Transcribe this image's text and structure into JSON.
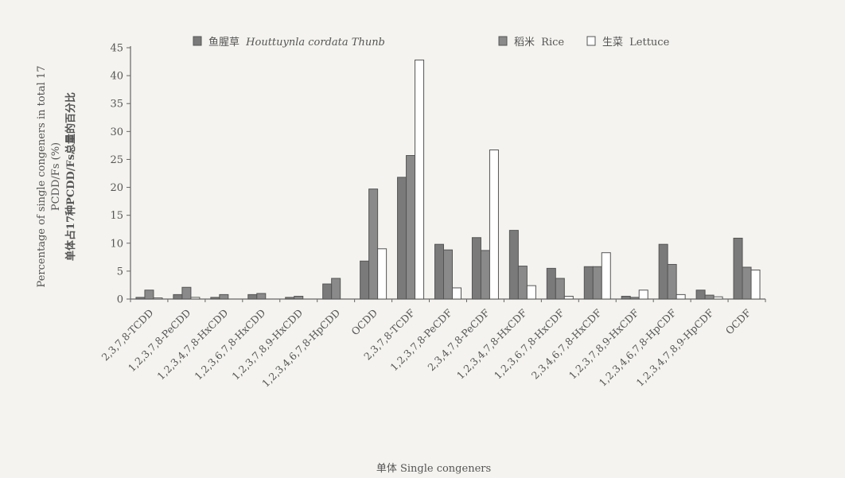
{
  "chart_data": {
    "type": "bar",
    "xlabel": "单体 Single congeners",
    "ylabel_en_line1": "Percentage of single congeners in total 17",
    "ylabel_en_line2": "PCDD/Fs (%)",
    "ylabel_cn": "单体占17种PCDD/Fs总量的百分比",
    "ylim": [
      0,
      45
    ],
    "yticks": [
      0,
      5,
      10,
      15,
      20,
      25,
      30,
      35,
      40,
      45
    ],
    "legend_position": "top",
    "categories": [
      "2,3,7,8-TCDD",
      "1,2,3,7,8-PeCDD",
      "1,2,3,4,7,8-HxCDD",
      "1,2,3,6,7,8-HxCDD",
      "1,2,3,7,8,9-HxCDD",
      "1,2,3,4,6,7,8-HpCDD",
      "OCDD",
      "2,3,7,8-TCDF",
      "1,2,3,7,8-PeCDF",
      "2,3,4,7,8-PeCDF",
      "1,2,3,4,7,8-HxCDF",
      "1,2,3,6,7,8-HxCDF",
      "2,3,4,6,7,8-HxCDF",
      "1,2,3,7,8,9-HxCDF",
      "1,2,3,4,6,7,8-HpCDF",
      "1,2,3,4,7,8,9-HpCDF",
      "OCDF"
    ],
    "series": [
      {
        "name_cn": "鱼腥草",
        "name_en": "Houttuynla cordata Thunb",
        "color": "#7a7a7a",
        "values": [
          0.3,
          0.8,
          0.3,
          0.8,
          0.3,
          2.7,
          6.8,
          21.8,
          9.8,
          11.0,
          12.3,
          5.5,
          5.8,
          0.5,
          9.8,
          1.6,
          10.9
        ]
      },
      {
        "name_cn": "稻米",
        "name_en": "Rice",
        "color": "#8a8a8a",
        "values": [
          1.6,
          2.1,
          0.8,
          1.0,
          0.5,
          3.7,
          19.7,
          25.7,
          8.8,
          8.7,
          5.9,
          3.7,
          5.8,
          0.3,
          6.2,
          0.7,
          5.7
        ]
      },
      {
        "name_cn": "生菜",
        "name_en": "Lettuce",
        "color": "#ffffff",
        "values": [
          0.2,
          0.3,
          0.0,
          0.0,
          0.0,
          0.0,
          9.0,
          42.8,
          2.0,
          26.7,
          2.4,
          0.5,
          8.3,
          1.6,
          0.8,
          0.4,
          5.2
        ]
      }
    ]
  }
}
